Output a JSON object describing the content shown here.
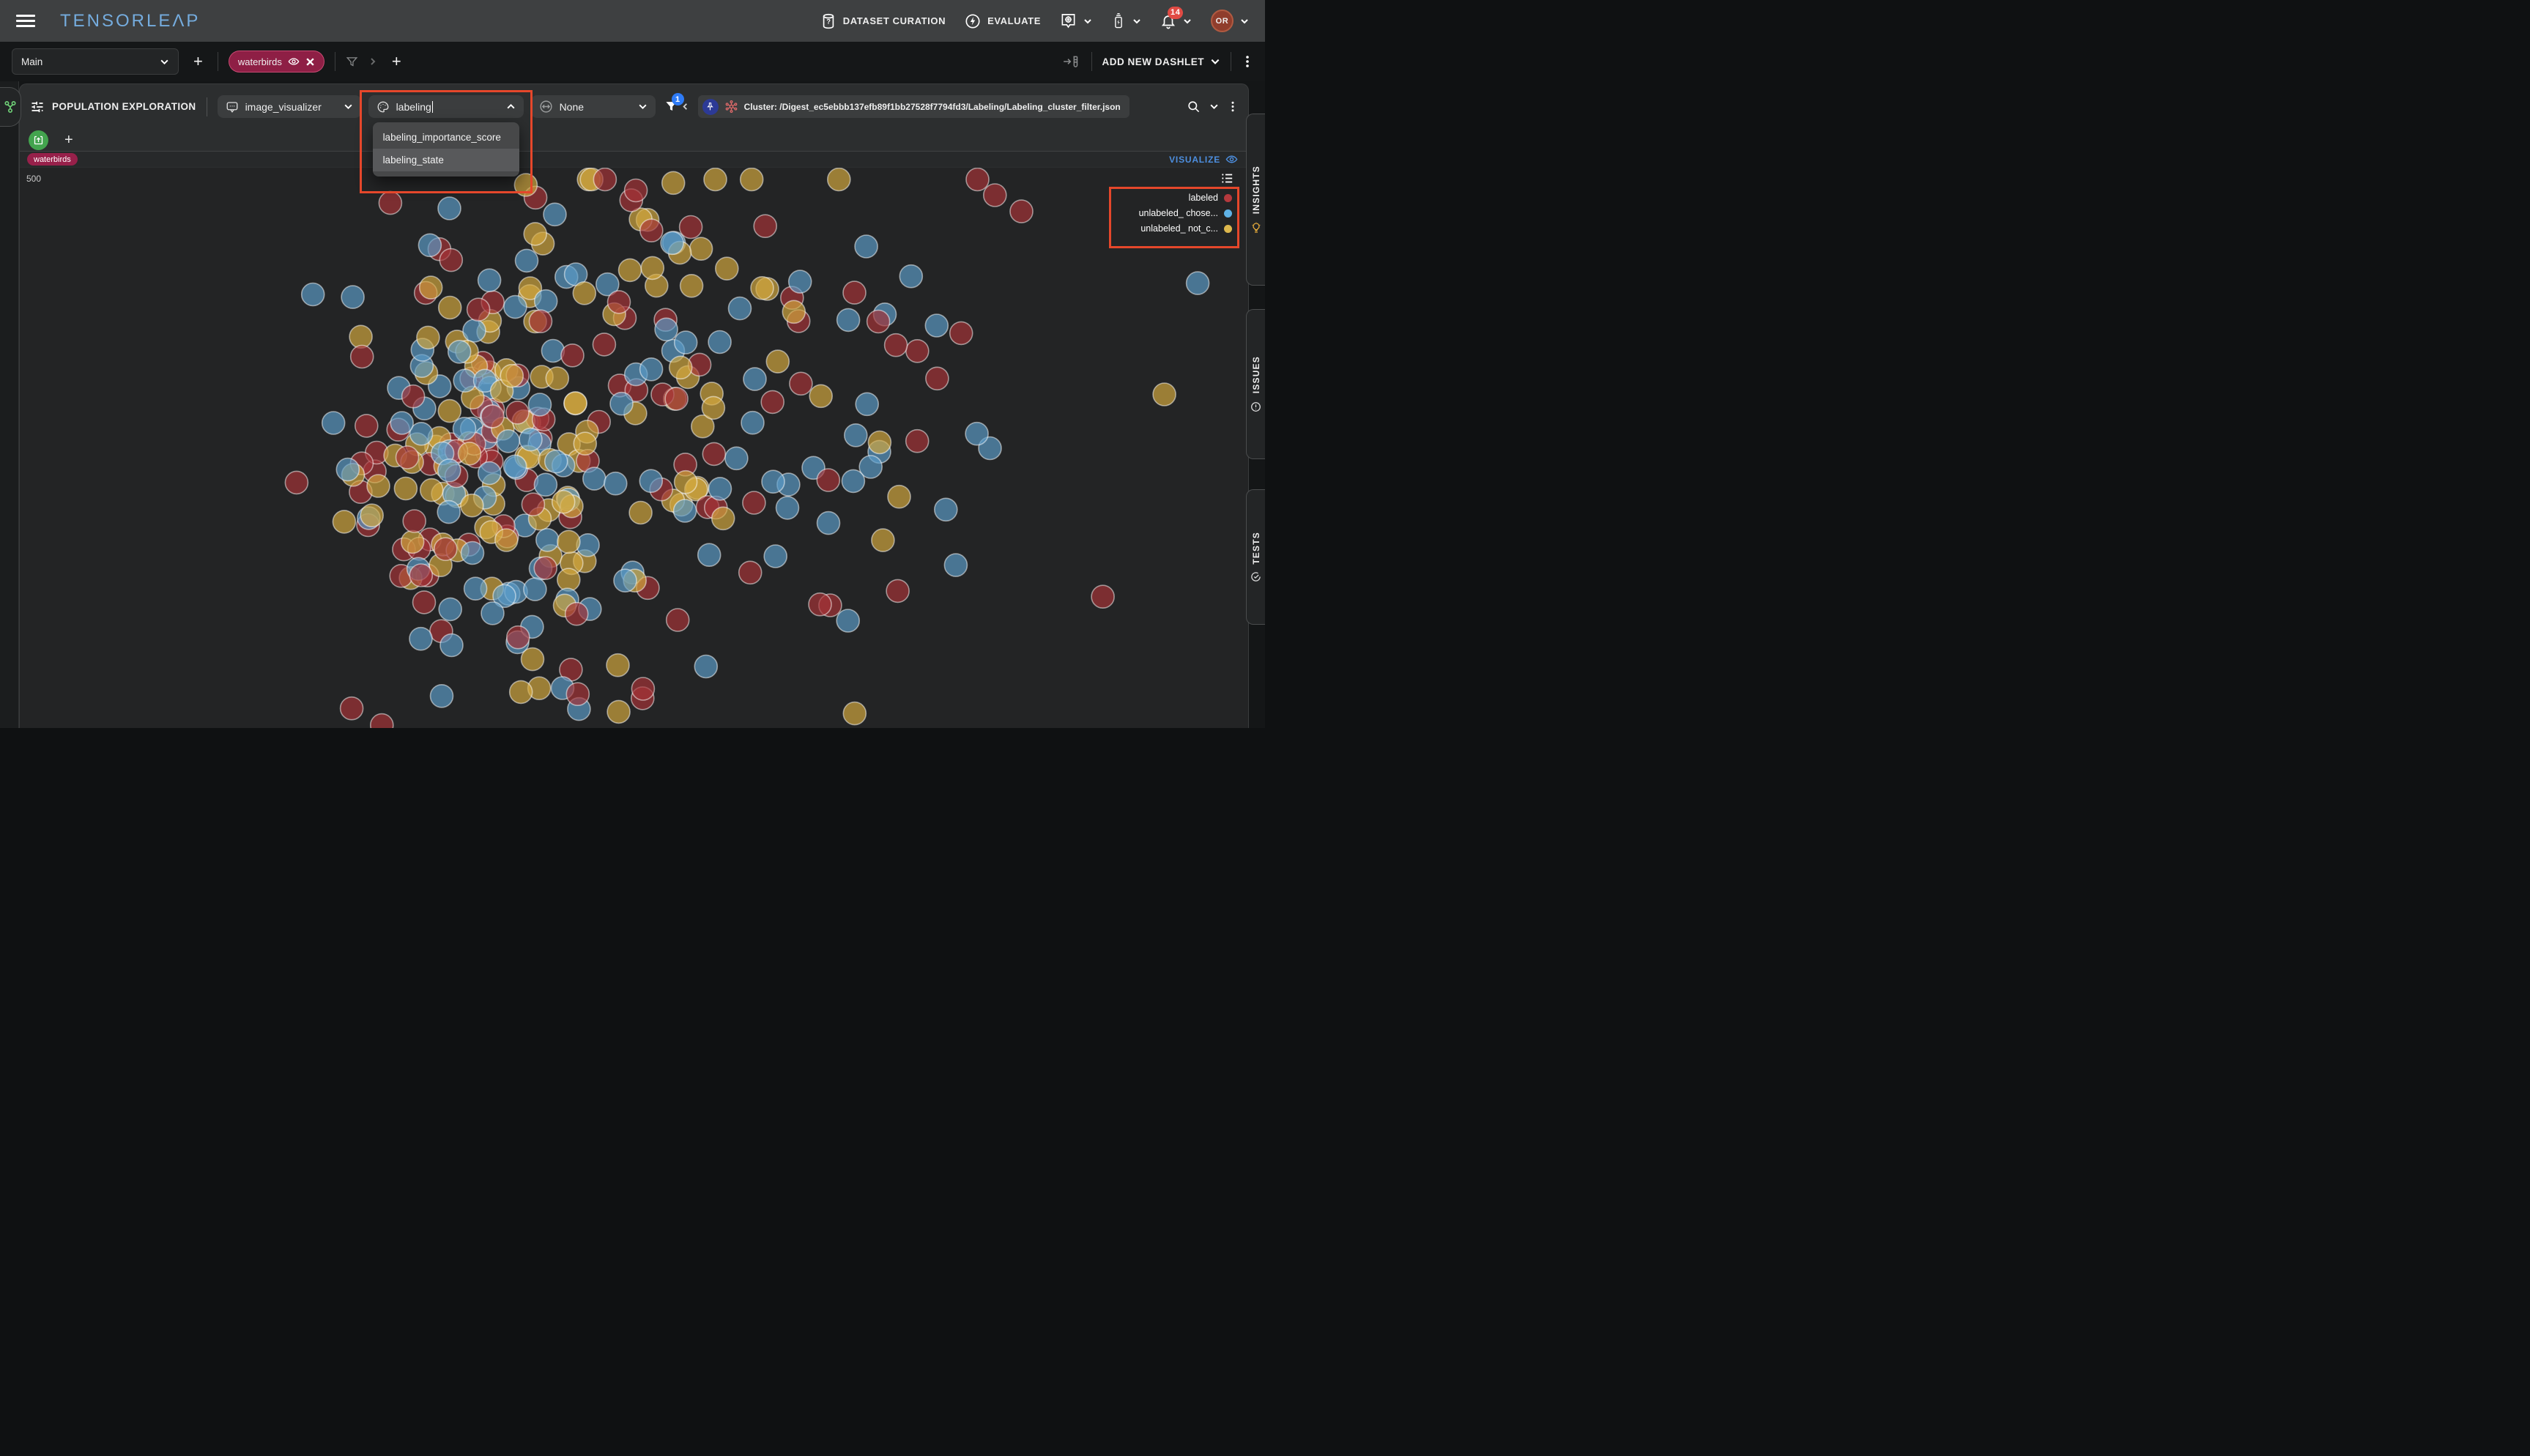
{
  "topbar": {
    "logo": "TENSORLEΛP",
    "dataset_curation": "DATASET CURATION",
    "evaluate": "EVALUATE",
    "notification_count": "14",
    "avatar_initials": "OR"
  },
  "ui": {
    "plus": "+"
  },
  "tabbar": {
    "selected_version": "Main",
    "dataset_chip": "waterbirds",
    "add_new_dashlet": "ADD NEW DASHLET"
  },
  "dashlet": {
    "title": "POPULATION EXPLORATION",
    "visualizer_select": {
      "value": "image_visualizer"
    },
    "color_select": {
      "value": "labeling",
      "options": [
        "labeling_importance_score",
        "labeling_state"
      ],
      "highlighted_option": "labeling_state"
    },
    "size_select": {
      "value": "None"
    },
    "filter_badge": "1",
    "cluster_filter": "Cluster: /Digest_ec5ebbb137efb89f1bb27528f7794fd3/Labeling/Labeling_cluster_filter.json",
    "dataset_chip": "waterbirds",
    "sample_count": "500",
    "visualize_label": "VISUALIZE"
  },
  "legend": {
    "items": [
      {
        "label": "labeled",
        "color": "#b5393d"
      },
      {
        "label": "unlabeled_ chose...",
        "color": "#5fb2e6"
      },
      {
        "label": "unlabeled_ not_c...",
        "color": "#ddb84d"
      }
    ]
  },
  "sidebar": {
    "tabs": [
      {
        "label": "INSIGHTS"
      },
      {
        "label": "ISSUES"
      },
      {
        "label": "TESTS"
      }
    ]
  },
  "colors": {
    "accent_blue": "#4d8fe0",
    "annotation_red": "#e5472b",
    "chip_crimson": "#8e1f45",
    "badge_blue": "#2e7bf6",
    "badge_red": "#e14b44",
    "logo_blue": "#75acde",
    "green_action": "#43a44e"
  },
  "chart_data": {
    "type": "scatter",
    "title": "Population exploration latent-space projection, colored by labeling_state",
    "sample_count": 500,
    "legend_position": "top-right",
    "axes": "hidden (2D embedding, no ticks or labels shown)",
    "point_radius": 15.5,
    "point_opacity": 0.68,
    "point_stroke": "rgba(255,255,255,0.5)",
    "series": [
      {
        "name": "labeled",
        "color": "#a63338",
        "weight": 0.34
      },
      {
        "name": "unlabeled_ chose...",
        "color": "#5b9cc9",
        "weight": 0.3
      },
      {
        "name": "unlabeled_ not_c...",
        "color": "#d4a93f",
        "weight": 0.36
      }
    ],
    "seed": 13,
    "clusters": [
      {
        "cx": 620,
        "cy": 390,
        "sx": 95,
        "sy": 110,
        "n": 135
      },
      {
        "cx": 790,
        "cy": 300,
        "sx": 170,
        "sy": 150,
        "n": 95
      },
      {
        "cx": 1040,
        "cy": 330,
        "sx": 220,
        "sy": 170,
        "n": 80
      },
      {
        "cx": 700,
        "cy": 660,
        "sx": 140,
        "sy": 75,
        "n": 30
      },
      {
        "cx": 900,
        "cy": 60,
        "sx": 120,
        "sy": 40,
        "n": 12
      }
    ]
  }
}
